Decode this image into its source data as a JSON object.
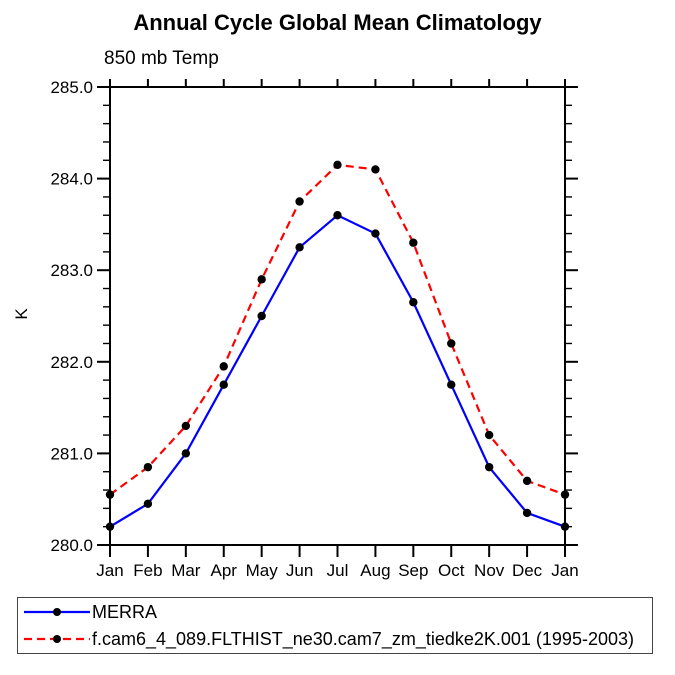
{
  "header": {
    "title": "Annual Cycle Global Mean Climatology",
    "subtitle": "850 mb Temp"
  },
  "chart_data": {
    "type": "line",
    "title": "Annual Cycle Global Mean Climatology",
    "subtitle": "850 mb Temp",
    "xlabel": "",
    "ylabel": "K",
    "categories": [
      "Jan",
      "Feb",
      "Mar",
      "Apr",
      "May",
      "Jun",
      "Jul",
      "Aug",
      "Sep",
      "Oct",
      "Nov",
      "Dec",
      "Jan"
    ],
    "series": [
      {
        "name": "MERRA",
        "color": "#0000ff",
        "dash": "solid",
        "values": [
          280.2,
          280.45,
          281.0,
          281.75,
          282.5,
          283.25,
          283.6,
          283.4,
          282.65,
          281.75,
          280.85,
          280.35,
          280.2
        ]
      },
      {
        "name": "f.cam6_4_089.FLTHIST_ne30.cam7_zm_tiedke2K.001 (1995-2003)",
        "color": "#ff0000",
        "dash": "dashed",
        "values": [
          280.55,
          280.85,
          281.3,
          281.95,
          282.9,
          283.75,
          284.15,
          284.1,
          283.3,
          282.2,
          281.2,
          280.7,
          280.55
        ]
      }
    ],
    "ylim": [
      280.0,
      285.0
    ],
    "ytick_step": 1.0,
    "yminor_step": 0.2,
    "ytick_format_decimals": 1,
    "marker": "filled-circle",
    "marker_color": "#000000",
    "grid": false,
    "legend_position": "bottom-left"
  }
}
